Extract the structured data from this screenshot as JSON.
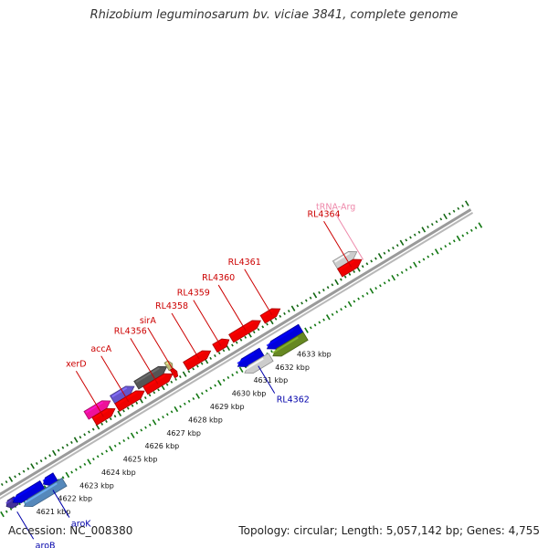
{
  "title": "Rhizobium leguminosarum bv. viciae 3841, complete genome",
  "footer": {
    "accession": "Accession: NC_008380",
    "topology": "Topology: circular; Length: 5,057,142 bp; Genes: 4,755"
  },
  "colors": {
    "backbone": "#999999",
    "tick_upper": "#116611",
    "tick_lower": "#117711",
    "label_forward": "#cc0000",
    "label_reverse": "#0000aa",
    "label_trna": "#ee88aa"
  },
  "scale": {
    "ticks": [
      {
        "value": 4621,
        "label": "4621 kbp"
      },
      {
        "value": 4622,
        "label": "4622 kbp"
      },
      {
        "value": 4623,
        "label": "4623 kbp"
      },
      {
        "value": 4624,
        "label": "4624 kbp"
      },
      {
        "value": 4625,
        "label": "4625 kbp"
      },
      {
        "value": 4626,
        "label": "4626 kbp"
      },
      {
        "value": 4627,
        "label": "4627 kbp"
      },
      {
        "value": 4628,
        "label": "4628 kbp"
      },
      {
        "value": 4629,
        "label": "4629 kbp"
      },
      {
        "value": 4630,
        "label": "4630 kbp"
      },
      {
        "value": 4631,
        "label": "4631 kbp"
      },
      {
        "value": 4632,
        "label": "4632 kbp"
      },
      {
        "value": 4633,
        "label": "4633 kbp"
      }
    ]
  },
  "features": [
    {
      "name": "aroB_feat",
      "strand": "reverse",
      "start": 4620.3,
      "end": 4620.75,
      "color": "#443399"
    },
    {
      "name": "rev_blue_1",
      "strand": "reverse",
      "start": 4620.6,
      "end": 4621.95,
      "color": "#0000dd"
    },
    {
      "name": "rev_blue_2",
      "strand": "reverse",
      "start": 4622.0,
      "end": 4622.55,
      "color": "#0000dd"
    },
    {
      "name": "aroK_feat",
      "strand": "reverse",
      "start": 4620.9,
      "end": 4622.75,
      "color": "#5588bb",
      "lane": 2
    },
    {
      "name": "xerD_feat",
      "strand": "forward",
      "start": 4624.85,
      "end": 4625.95,
      "color": "#ee1199"
    },
    {
      "name": "accA_feat",
      "strand": "forward",
      "start": 4626.05,
      "end": 4627.05,
      "color": "#6655cc"
    },
    {
      "name": "fwd_red_1",
      "strand": "forward",
      "start": 4625.0,
      "end": 4625.95,
      "color": "#ee0000",
      "lane": 2
    },
    {
      "name": "fwd_red_2",
      "strand": "forward",
      "start": 4626.05,
      "end": 4627.3,
      "color": "#ee0000",
      "lane": 2
    },
    {
      "name": "RL4356_feat",
      "strand": "forward",
      "start": 4627.15,
      "end": 4628.55,
      "color": "#555555"
    },
    {
      "name": "sirA_feat",
      "strand": "forward",
      "start": 4628.55,
      "end": 4628.8,
      "color": "#bbbb77"
    },
    {
      "name": "fwd_red_3",
      "strand": "forward",
      "start": 4627.35,
      "end": 4628.6,
      "color": "#ee0000",
      "lane": 2
    },
    {
      "name": "fwd_red_4",
      "strand": "forward",
      "start": 4628.6,
      "end": 4628.8,
      "color": "#ee0000",
      "lane": 2
    },
    {
      "name": "RL4358_feat",
      "strand": "forward",
      "start": 4629.2,
      "end": 4630.35,
      "color": "#ee0000",
      "lane": 2
    },
    {
      "name": "RL4359_feat",
      "strand": "forward",
      "start": 4630.55,
      "end": 4631.2,
      "color": "#ee0000",
      "lane": 2
    },
    {
      "name": "RL4360_feat",
      "strand": "forward",
      "start": 4631.3,
      "end": 4632.65,
      "color": "#ee0000",
      "lane": 2
    },
    {
      "name": "RL4361_feat",
      "strand": "forward",
      "start": 4632.75,
      "end": 4633.55,
      "color": "#ee0000",
      "lane": 2
    },
    {
      "name": "rev_blue_3",
      "strand": "reverse",
      "start": 4630.95,
      "end": 4632.05,
      "color": "#0000dd"
    },
    {
      "name": "rev_blue_4",
      "strand": "reverse",
      "start": 4632.3,
      "end": 4633.85,
      "color": "#0000dd"
    },
    {
      "name": "RL4362_feat",
      "strand": "reverse",
      "start": 4631.05,
      "end": 4632.25,
      "color": "#cccccc",
      "lane": 2
    },
    {
      "name": "rev_olive",
      "strand": "reverse",
      "start": 4632.35,
      "end": 4633.85,
      "color": "#668822",
      "lane": 2
    },
    {
      "name": "RL4364_feat",
      "strand": "forward",
      "start": 4636.3,
      "end": 4637.3,
      "color": "#cccccc"
    },
    {
      "name": "fwd_red_5",
      "strand": "forward",
      "start": 4636.3,
      "end": 4637.3,
      "color": "#ee0000",
      "lane": 2
    }
  ],
  "labels": [
    {
      "text": "xerD",
      "color": "#cc0000",
      "side": "upper",
      "anchor": 4625.4
    },
    {
      "text": "accA",
      "color": "#cc0000",
      "side": "upper",
      "anchor": 4626.55
    },
    {
      "text": "RL4356",
      "color": "#cc0000",
      "side": "upper",
      "anchor": 4627.9
    },
    {
      "text": "sirA",
      "color": "#cc0000",
      "side": "upper",
      "anchor": 4628.7
    },
    {
      "text": "RL4358",
      "color": "#cc0000",
      "side": "upper",
      "anchor": 4629.8
    },
    {
      "text": "RL4359",
      "color": "#cc0000",
      "side": "upper",
      "anchor": 4630.8
    },
    {
      "text": "RL4360",
      "color": "#cc0000",
      "side": "upper",
      "anchor": 4631.95
    },
    {
      "text": "RL4361",
      "color": "#cc0000",
      "side": "upper",
      "anchor": 4633.15
    },
    {
      "text": "RL4364",
      "color": "#cc0000",
      "side": "upper",
      "anchor": 4636.8
    },
    {
      "text": "tRNA-Arg",
      "color": "#ee88aa",
      "side": "upper",
      "anchor": 4637.35
    },
    {
      "text": "RL4362",
      "color": "#0000aa",
      "side": "lower",
      "anchor": 4631.65
    },
    {
      "text": "aroK",
      "color": "#0000aa",
      "side": "lower",
      "anchor": 4622.2
    },
    {
      "text": "aroB",
      "color": "#0000aa",
      "side": "lower",
      "anchor": 4620.55
    }
  ]
}
